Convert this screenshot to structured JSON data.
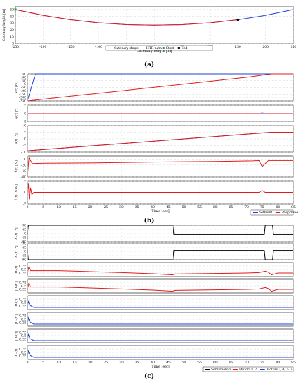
{
  "panel_labels": [
    "(a)",
    "(b)",
    "(c)"
  ],
  "colors": {
    "blue": "#1f3fd6",
    "red": "#e01b1b",
    "black": "#000000",
    "green": "#2ca02c",
    "grid": "#cccccc"
  },
  "chart_data": [
    {
      "id": "a",
      "type": "line",
      "xlabel": "Catenary length [m]",
      "ylabel": "Catenary height [m]",
      "xlim": [
        -250,
        250
      ],
      "ylim": [
        0,
        55
      ],
      "xticks": [
        -250,
        -200,
        -150,
        -100,
        -50,
        0,
        50,
        100,
        150,
        200,
        250
      ],
      "yticks": [
        0,
        10,
        20,
        30,
        40,
        50
      ],
      "series": [
        {
          "name": "Catenary shape",
          "color": "blue",
          "x": [
            -250,
            -200,
            -150,
            -100,
            -50,
            0,
            50,
            100,
            150,
            200,
            250
          ],
          "y": [
            50,
            41.6,
            35.1,
            30.6,
            28.0,
            27.2,
            28.0,
            30.6,
            35.1,
            41.6,
            50
          ]
        },
        {
          "name": "HTR path",
          "color": "red",
          "x": [
            -250,
            -200,
            -150,
            -100,
            -50,
            0,
            50,
            100,
            150
          ],
          "y": [
            50,
            41.6,
            35.1,
            30.6,
            28.0,
            27.2,
            28.0,
            30.6,
            35.1
          ]
        }
      ],
      "markers": [
        {
          "name": "Start",
          "x": -250,
          "y": 50
        },
        {
          "name": "End",
          "x": 150,
          "y": 35.1
        }
      ],
      "legend": {
        "placement": "bottom-center",
        "entries": [
          "Catenary shape",
          "HTR path",
          "Start",
          "End"
        ]
      }
    },
    {
      "id": "b",
      "type": "line",
      "xlabel": "Time [sec]",
      "xlim": [
        0,
        85
      ],
      "xticks": [
        0,
        5,
        10,
        15,
        20,
        25,
        30,
        35,
        40,
        45,
        50,
        55,
        60,
        65,
        70,
        75,
        80,
        85
      ],
      "legend": {
        "placement": "bottom-right",
        "entries": [
          "SetPoint",
          "Responses"
        ]
      },
      "subplots": [
        {
          "ylabel": "x(t) [m]",
          "ylim": [
            -250,
            150
          ],
          "yticks": [
            -250,
            -200,
            -150,
            -100,
            -50,
            0,
            50,
            100,
            150
          ],
          "series": [
            {
              "name": "SetPoint",
              "color": "blue",
              "x": [
                0,
                2.5,
                85
              ],
              "y": [
                -250,
                150,
                150
              ]
            },
            {
              "name": "Responses",
              "color": "red",
              "x": [
                0,
                10,
                20,
                30,
                40,
                50,
                60,
                70,
                78,
                85
              ],
              "y": [
                -250,
                -200,
                -150,
                -100,
                -50,
                0,
                50,
                100,
                150,
                150
              ]
            }
          ]
        },
        {
          "ylabel": "φ(t) [°]",
          "ylim": [
            -5,
            5
          ],
          "yticks": [
            -5,
            0,
            5
          ],
          "series": [
            {
              "name": "SetPoint",
              "color": "blue",
              "x": [
                0,
                85
              ],
              "y": [
                0,
                0
              ]
            },
            {
              "name": "Responses",
              "color": "red",
              "x": [
                0,
                74,
                75,
                76,
                85
              ],
              "y": [
                0,
                0,
                0.4,
                0,
                0
              ]
            }
          ]
        },
        {
          "ylabel": "θ(t) [°]",
          "ylim": [
            -10,
            10
          ],
          "yticks": [
            -10,
            -5,
            0,
            5,
            10
          ],
          "series": [
            {
              "name": "SetPoint",
              "color": "blue",
              "x": [
                0,
                78,
                85
              ],
              "y": [
                -9,
                5,
                5
              ]
            },
            {
              "name": "Responses",
              "color": "red",
              "x": [
                0,
                10,
                20,
                30,
                40,
                50,
                60,
                70,
                78,
                85
              ],
              "y": [
                -9,
                -7.2,
                -5.4,
                -3.6,
                -1.8,
                0,
                1.8,
                3.6,
                5,
                5
              ]
            }
          ]
        },
        {
          "ylabel": "X̂(t) [N]",
          "ylim": [
            -60,
            10
          ],
          "yticks": [
            -60,
            -40,
            -20,
            0
          ],
          "series": [
            {
              "name": "Responses",
              "color": "red",
              "x": [
                0,
                0.5,
                1.5,
                5,
                20,
                40,
                60,
                72,
                74,
                75,
                77,
                80,
                85
              ],
              "y": [
                -60,
                5,
                -15,
                -14,
                -13,
                -10,
                -8,
                -6,
                -5,
                -25,
                -5,
                -5,
                -5
              ]
            }
          ]
        },
        {
          "ylabel": "L̂(t) [N.m]",
          "ylim": [
            -5,
            5
          ],
          "yticks": [
            -5,
            0,
            5
          ],
          "series": [
            {
              "name": "Responses",
              "color": "red",
              "x": [
                0,
                0.3,
                0.6,
                1.0,
                1.4,
                2.0,
                74,
                75,
                76,
                85
              ],
              "y": [
                0,
                4,
                -3,
                2,
                -1,
                0,
                0,
                0.8,
                0,
                0
              ]
            }
          ]
        }
      ]
    },
    {
      "id": "c",
      "type": "line",
      "xlabel": "Time [sec]",
      "xlim": [
        0,
        85
      ],
      "xticks": [
        0,
        5,
        10,
        15,
        20,
        25,
        30,
        35,
        40,
        45,
        50,
        55,
        60,
        65,
        70,
        75,
        80,
        85
      ],
      "legend": {
        "placement": "bottom-right",
        "entries": [
          "Servomotors",
          "Motors 1, 2",
          "Motors 3, 4, 5, 6"
        ]
      },
      "subplots": [
        {
          "ylabel": "δ₁(t) [°]",
          "ylim": [
            -90,
            90
          ],
          "yticks": [
            -90,
            -45,
            0,
            45,
            90
          ],
          "series": [
            {
              "name": "Servomotors",
              "color": "black",
              "x": [
                0,
                0.3,
                46.5,
                46.8,
                75.7,
                76,
                78.3,
                78.6,
                85
              ],
              "y": [
                -10,
                90,
                90,
                -10,
                -10,
                90,
                90,
                -10,
                -10
              ]
            }
          ]
        },
        {
          "ylabel": "δ₂(t) [°]",
          "ylim": [
            -90,
            90
          ],
          "yticks": [
            -90,
            -45,
            0,
            45,
            90
          ],
          "series": [
            {
              "name": "Servomotors",
              "color": "black",
              "x": [
                0,
                0.3,
                46.5,
                46.8,
                75.7,
                76,
                78.3,
                78.6,
                85
              ],
              "y": [
                10,
                -90,
                -90,
                10,
                10,
                -90,
                -90,
                10,
                10
              ]
            }
          ]
        },
        {
          "ylabel": "|Ω₁(t)|",
          "ylim": [
            0,
            1
          ],
          "yticks": [
            0.25,
            0.5,
            0.75
          ],
          "series": [
            {
              "name": "Motors 1, 2",
              "color": "red",
              "x": [
                0,
                0.4,
                1,
                10,
                20,
                30,
                40,
                46.5,
                47,
                60,
                70,
                74,
                76,
                77,
                78,
                80,
                85
              ],
              "y": [
                0.22,
                0.65,
                0.42,
                0.42,
                0.35,
                0.28,
                0.2,
                0.12,
                0.18,
                0.22,
                0.25,
                0.28,
                0.38,
                0.3,
                0.12,
                0.25,
                0.25
              ]
            }
          ]
        },
        {
          "ylabel": "|Ω₂(t)|",
          "ylim": [
            0,
            1
          ],
          "yticks": [
            0.25,
            0.5,
            0.75
          ],
          "series": [
            {
              "name": "Motors 1, 2",
              "color": "red",
              "x": [
                0,
                0.4,
                1,
                10,
                20,
                30,
                40,
                46.5,
                47,
                60,
                70,
                74,
                76,
                77,
                78,
                80,
                85
              ],
              "y": [
                0.22,
                0.65,
                0.42,
                0.42,
                0.35,
                0.28,
                0.2,
                0.12,
                0.18,
                0.22,
                0.25,
                0.28,
                0.38,
                0.3,
                0.12,
                0.25,
                0.25
              ]
            }
          ]
        },
        {
          "ylabel": "|Ω₃(t)|",
          "ylim": [
            0,
            1
          ],
          "yticks": [
            0.25,
            0.5,
            0.75
          ],
          "series": [
            {
              "name": "Motors 3, 4, 5, 6",
              "color": "blue",
              "x": [
                0,
                0.3,
                0.8,
                2,
                85
              ],
              "y": [
                0.15,
                0.6,
                0.3,
                0.15,
                0.15
              ]
            }
          ]
        },
        {
          "ylabel": "|Ω₄(t)|",
          "ylim": [
            0,
            1
          ],
          "yticks": [
            0.25,
            0.5,
            0.75
          ],
          "series": [
            {
              "name": "Motors 3, 4, 5, 6",
              "color": "blue",
              "x": [
                0,
                0.3,
                0.8,
                2,
                85
              ],
              "y": [
                0.15,
                0.6,
                0.3,
                0.15,
                0.15
              ]
            }
          ]
        },
        {
          "ylabel": "|Ω₅(t)|",
          "ylim": [
            0,
            1
          ],
          "yticks": [
            0.25,
            0.5,
            0.75
          ],
          "series": [
            {
              "name": "Motors 3, 4, 5, 6",
              "color": "blue",
              "x": [
                0,
                0.3,
                0.8,
                2,
                85
              ],
              "y": [
                0.15,
                0.6,
                0.3,
                0.15,
                0.15
              ]
            }
          ]
        },
        {
          "ylabel": "|Ω₆(t)|",
          "ylim": [
            0,
            1
          ],
          "yticks": [
            0.25,
            0.5,
            0.75
          ],
          "series": [
            {
              "name": "Motors 3, 4, 5, 6",
              "color": "blue",
              "x": [
                0,
                0.3,
                0.8,
                2,
                85
              ],
              "y": [
                0.15,
                0.6,
                0.3,
                0.15,
                0.15
              ]
            }
          ]
        }
      ]
    }
  ]
}
